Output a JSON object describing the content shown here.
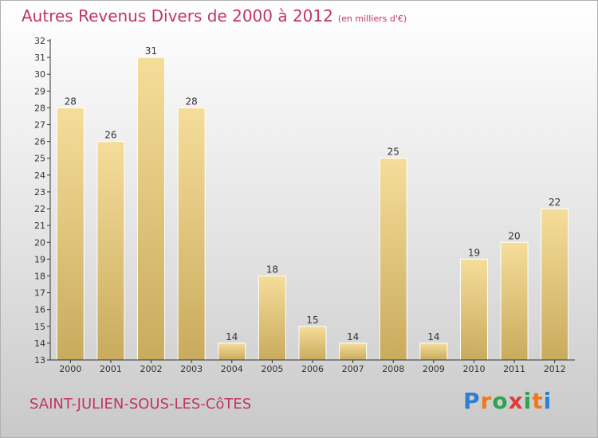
{
  "chart_data": {
    "type": "bar",
    "title": "Autres Revenus Divers de 2000 à 2012",
    "subtitle": "(en milliers d'€)",
    "categories": [
      "2000",
      "2001",
      "2002",
      "2003",
      "2004",
      "2005",
      "2006",
      "2007",
      "2008",
      "2009",
      "2010",
      "2011",
      "2012"
    ],
    "values": [
      28,
      26,
      31,
      28,
      14,
      18,
      15,
      14,
      25,
      14,
      19,
      20,
      22
    ],
    "ylim": [
      13,
      32
    ],
    "yticks": [
      13,
      14,
      15,
      16,
      17,
      18,
      19,
      20,
      21,
      22,
      23,
      24,
      25,
      26,
      27,
      28,
      29,
      30,
      31,
      32
    ],
    "grid": false,
    "data_labels": true,
    "bar_colors": {
      "light": "#f5dd9a",
      "dark": "#c9ab5d"
    }
  },
  "location": "SAINT-JULIEN-SOUS-LES-CôTES",
  "logo": {
    "letters": [
      "P",
      "r",
      "o",
      "x",
      "i",
      "t",
      "i"
    ],
    "colors": [
      "#2f7fd1",
      "#f07a1a",
      "#2fa34f",
      "#e03a3a",
      "#2fa34f",
      "#f07a1a",
      "#2f7fd1"
    ]
  },
  "colors": {
    "title": "#c0346b",
    "axis": "#333333"
  }
}
